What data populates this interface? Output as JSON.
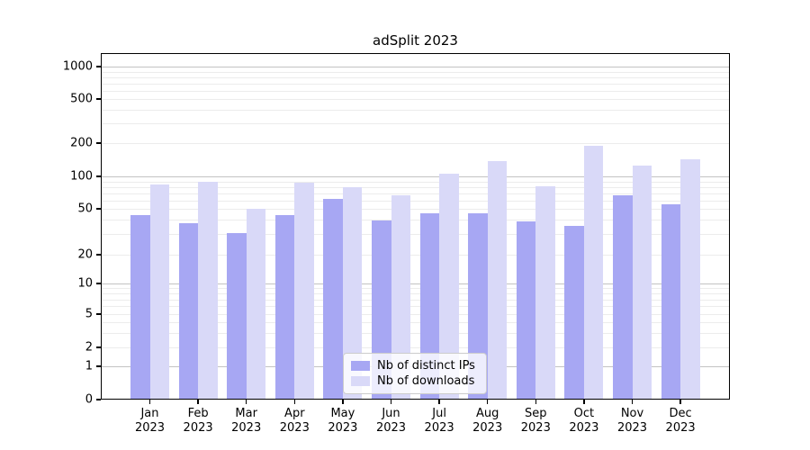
{
  "chart_data": {
    "type": "bar",
    "title": "adSplit 2023",
    "yscale": "symlog",
    "grid": true,
    "y_ticks": [
      0,
      1,
      2,
      5,
      10,
      20,
      50,
      100,
      200,
      500,
      1000
    ],
    "categories": [
      "Jan",
      "Feb",
      "Mar",
      "Apr",
      "May",
      "Jun",
      "Jul",
      "Aug",
      "Sep",
      "Oct",
      "Nov",
      "Dec"
    ],
    "x_tick_second_line": "2023",
    "series": [
      {
        "name": "Nb of distinct IPs",
        "key": "ips",
        "color": "#a7a7f3",
        "values": [
          43,
          37,
          30,
          43,
          61,
          39,
          45,
          45,
          38,
          35,
          66,
          54
        ]
      },
      {
        "name": "Nb of downloads",
        "key": "downloads",
        "color": "#d9d9f8",
        "values": [
          82,
          88,
          49,
          85,
          78,
          65,
          103,
          135,
          79,
          185,
          122,
          140
        ]
      }
    ],
    "legend_position": "lower center"
  },
  "colors": {
    "background": "#ffffff",
    "spine": "#000000",
    "major_grid": "#c3c3c3",
    "minor_grid": "#ececec"
  }
}
